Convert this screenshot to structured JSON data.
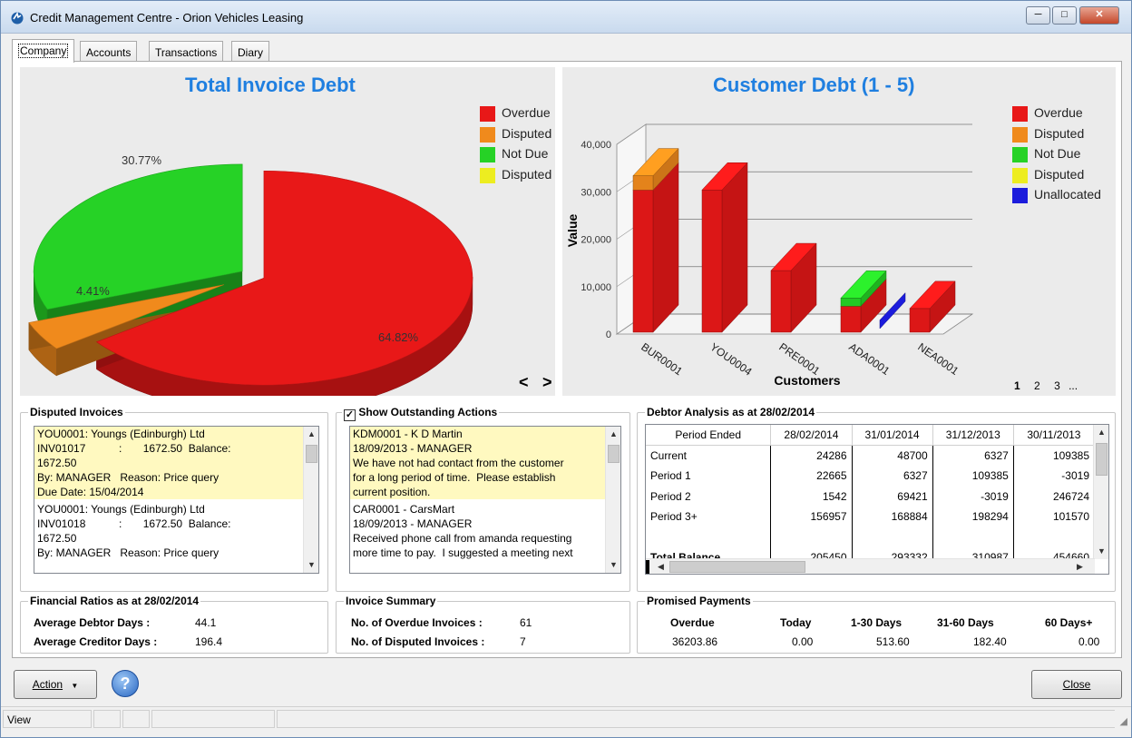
{
  "window": {
    "title": "Credit Management Centre - Orion Vehicles Leasing"
  },
  "tabs": [
    {
      "label": "Company"
    },
    {
      "label": "Accounts"
    },
    {
      "label": "Transactions"
    },
    {
      "label": "Diary"
    }
  ],
  "pie_chart": {
    "title": "Total Invoice Debt",
    "nav_prev": "<",
    "nav_next": ">",
    "legend": [
      {
        "label": "Overdue",
        "color": "#e81818"
      },
      {
        "label": "Disputed",
        "color": "#f08a1c"
      },
      {
        "label": "Not Due",
        "color": "#26d226"
      },
      {
        "label": "Disputed",
        "color": "#eded20"
      }
    ]
  },
  "bar_chart": {
    "title": "Customer Debt (1 - 5)",
    "pages": [
      "1",
      "2",
      "3",
      "..."
    ],
    "legend": [
      {
        "label": "Overdue",
        "color": "#e81818"
      },
      {
        "label": "Disputed",
        "color": "#f08a1c"
      },
      {
        "label": "Not Due",
        "color": "#26d226"
      },
      {
        "label": "Disputed",
        "color": "#eded20"
      },
      {
        "label": "Unallocated",
        "color": "#1c1cdc"
      }
    ]
  },
  "chart_data": [
    {
      "type": "pie",
      "title": "Total Invoice Debt",
      "slices": [
        {
          "label": "Overdue",
          "value": 64.82,
          "display": "64.82%",
          "color": "#e81818"
        },
        {
          "label": "Disputed",
          "value": 4.41,
          "display": "4.41%",
          "color": "#f08a1c"
        },
        {
          "label": "Not Due",
          "value": 30.77,
          "display": "30.77%",
          "color": "#26d226"
        }
      ]
    },
    {
      "type": "bar",
      "title": "Customer Debt (1 - 5)",
      "xlabel": "Customers",
      "ylabel": "Value",
      "ylim": [
        0,
        40000
      ],
      "yticks": [
        "0",
        "10,000",
        "20,000",
        "30,000",
        "40,000"
      ],
      "categories": [
        "BUR0001",
        "YOU0004",
        "PRE0001",
        "ADA0001",
        "NEA0001"
      ],
      "series": [
        {
          "name": "Overdue",
          "color": "#e81818",
          "values": [
            30000,
            30000,
            13000,
            5500,
            5000
          ]
        },
        {
          "name": "Disputed",
          "color": "#f08a1c",
          "values": [
            3000,
            0,
            0,
            0,
            0
          ]
        },
        {
          "name": "Not Due",
          "color": "#26d226",
          "values": [
            0,
            0,
            0,
            1700,
            0
          ]
        },
        {
          "name": "Unallocated",
          "color": "#1c1cdc",
          "values": [
            0,
            0,
            0,
            0,
            0
          ]
        }
      ],
      "extra_bars": [
        {
          "category_between": "ADA0001-NEA0001",
          "series": "Unallocated",
          "value": 1800
        }
      ]
    }
  ],
  "disputed_invoices": {
    "title": "Disputed Invoices",
    "entries": [
      {
        "highlight": true,
        "lines": [
          "YOU0001: Youngs (Edinburgh) Ltd",
          "INV01017           :       1672.50  Balance:",
          "1672.50",
          "By: MANAGER   Reason: Price query",
          "Due Date: 15/04/2014"
        ]
      },
      {
        "highlight": false,
        "lines": [
          "YOU0001: Youngs (Edinburgh) Ltd",
          "INV01018           :       1672.50  Balance:",
          "1672.50",
          "By: MANAGER   Reason: Price query"
        ]
      }
    ]
  },
  "outstanding_actions": {
    "title": "Show Outstanding Actions",
    "checked": true,
    "entries": [
      {
        "highlight": true,
        "lines": [
          "KDM0001 - K D Martin",
          "18/09/2013 - MANAGER",
          "We have not had contact from the customer",
          "for a long period of time.  Please establish",
          "current position."
        ]
      },
      {
        "highlight": false,
        "lines": [
          "CAR0001 - CarsMart",
          "18/09/2013 - MANAGER",
          "Received phone call from amanda requesting",
          "more time to pay.  I suggested a meeting next"
        ]
      }
    ]
  },
  "debtor_analysis": {
    "title": "Debtor Analysis as at 28/02/2014",
    "columns": [
      "Period Ended",
      "28/02/2014",
      "31/01/2014",
      "31/12/2013",
      "30/11/2013"
    ],
    "rows": [
      {
        "label": "Current",
        "values": [
          "24286",
          "48700",
          "6327",
          "109385"
        ]
      },
      {
        "label": "Period 1",
        "values": [
          "22665",
          "6327",
          "109385",
          "-3019"
        ]
      },
      {
        "label": "Period 2",
        "values": [
          "1542",
          "69421",
          "-3019",
          "246724"
        ]
      },
      {
        "label": "Period 3+",
        "values": [
          "156957",
          "168884",
          "198294",
          "101570"
        ]
      },
      {
        "label": "",
        "values": [
          "",
          "",
          "",
          ""
        ]
      },
      {
        "label": "Total Balance",
        "values": [
          "205450",
          "293332",
          "310987",
          "454660"
        ]
      }
    ]
  },
  "financial_ratios": {
    "title": "Financial Ratios as at 28/02/2014",
    "debtor_days_label": "Average Debtor Days :",
    "debtor_days_value": "44.1",
    "creditor_days_label": "Average Creditor Days :",
    "creditor_days_value": "196.4"
  },
  "invoice_summary": {
    "title": "Invoice Summary",
    "overdue_label": "No. of Overdue Invoices :",
    "overdue_value": "61",
    "disputed_label": "No. of Disputed Invoices :",
    "disputed_value": "7"
  },
  "promised_payments": {
    "title": "Promised Payments",
    "columns": [
      "Overdue",
      "Today",
      "1-30 Days",
      "31-60 Days",
      "60 Days+"
    ],
    "values": [
      "36203.86",
      "0.00",
      "513.60",
      "182.40",
      "0.00"
    ]
  },
  "footer": {
    "action_label": "Action",
    "close_label": "Close"
  },
  "statusbar": {
    "text": "View"
  }
}
